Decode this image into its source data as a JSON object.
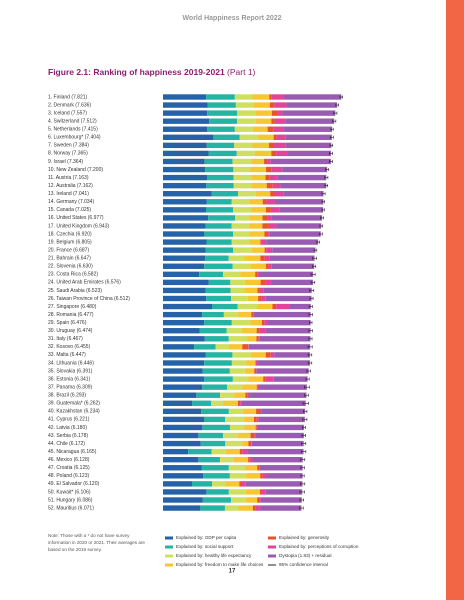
{
  "header": "World Happiness Report 2022",
  "page_number": "17",
  "note": "Note: Those with a * do not have survey information in 2020 or 2021. Their averages are based on the 2019 survey.",
  "chart_data": {
    "type": "stacked-barh",
    "title": "Figure 2.1: Ranking of happiness 2019-2021",
    "title_part": "(Part 1)",
    "xlim": [
      0,
      8
    ],
    "categories": [
      "1. Finland (7.821)",
      "2. Denmark (7.636)",
      "3. Iceland (7.557)",
      "4. Switzerland (7.512)",
      "5. Netherlands (7.415)",
      "6. Luxembourg* (7.404)",
      "7. Sweden (7.384)",
      "8. Norway (7.365)",
      "9. Israel (7.364)",
      "10. New Zealand (7.200)",
      "11. Austria (7.163)",
      "12. Australia (7.162)",
      "13. Ireland (7.041)",
      "14. Germany (7.034)",
      "15. Canada (7.025)",
      "16. United States (6.977)",
      "17. United Kingdom (6.943)",
      "18. Czechia (6.920)",
      "19. Belgium (6.805)",
      "20. France (6.687)",
      "21. Bahrain (6.647)",
      "22. Slovenia (6.630)",
      "23. Costa Rica (6.582)",
      "24. United Arab Emirates (6.576)",
      "25. Saudi Arabia (6.523)",
      "26. Taiwan Province of China (6.512)",
      "27. Singapore (6.480)",
      "28. Romania (6.477)",
      "29. Spain (6.476)",
      "30. Uruguay (6.474)",
      "31. Italy (6.467)",
      "32. Kosovo (6.455)",
      "33. Malta (6.447)",
      "34. Lithuania (6.446)",
      "35. Slovakia (6.391)",
      "36. Estonia (6.341)",
      "37. Panama (6.309)",
      "38. Brazil (6.293)",
      "39. Guatemala* (6.262)",
      "40. Kazakhstan (6.234)",
      "41. Cyprus (6.221)",
      "42. Latvia (6.180)",
      "43. Serbia (6.178)",
      "44. Chile (6.172)",
      "45. Nicaragua (6.165)",
      "46. Mexico (6.128)",
      "47. Croatia (6.125)",
      "48. Poland (6.123)",
      "49. El Salvador (6.120)",
      "50. Kuwait* (6.106)",
      "51. Hungary (6.086)",
      "52. Mauritius (6.071)"
    ],
    "series": [
      {
        "name": "Explained by: GDP per capita",
        "color": "#2662a8",
        "values": [
          1.892,
          1.953,
          1.936,
          2.026,
          1.945,
          2.209,
          1.92,
          1.997,
          1.826,
          1.852,
          1.931,
          1.9,
          2.129,
          1.924,
          1.886,
          1.982,
          1.867,
          1.815,
          1.907,
          1.863,
          1.854,
          1.81,
          1.584,
          2.01,
          1.87,
          1.897,
          2.149,
          1.719,
          1.808,
          1.615,
          1.834,
          1.362,
          1.864,
          1.806,
          1.735,
          1.812,
          1.717,
          1.462,
          1.274,
          1.668,
          1.815,
          1.726,
          1.55,
          1.651,
          1.105,
          1.552,
          1.705,
          1.758,
          1.271,
          1.904,
          1.748,
          1.639
        ]
      },
      {
        "name": "Explained by: social support",
        "color": "#25b3a4",
        "values": [
          1.258,
          1.243,
          1.32,
          1.226,
          1.206,
          1.155,
          1.204,
          1.239,
          1.221,
          1.235,
          1.165,
          1.203,
          1.166,
          1.088,
          1.188,
          1.182,
          1.143,
          1.26,
          1.106,
          1.219,
          1.029,
          1.249,
          1.054,
          0.943,
          1.092,
          1.095,
          1.127,
          0.951,
          1.211,
          1.179,
          1.051,
          0.949,
          1.181,
          1.215,
          1.198,
          1.252,
          1.101,
          1.044,
          0.831,
          1.22,
          0.909,
          1.211,
          1.086,
          1.08,
          1.029,
          0.946,
          1.183,
          1.174,
          0.885,
          0.983,
          1.233,
          1.077
        ]
      },
      {
        "name": "Explained by: healthy life expectancy",
        "color": "#cfe060",
        "values": [
          0.775,
          0.777,
          0.803,
          0.822,
          0.787,
          0.79,
          0.803,
          0.786,
          0.818,
          0.752,
          0.774,
          0.772,
          0.779,
          0.776,
          0.783,
          0.628,
          0.75,
          0.715,
          0.764,
          0.808,
          0.693,
          0.769,
          0.744,
          0.631,
          0.606,
          0.733,
          0.851,
          0.635,
          0.808,
          0.658,
          0.801,
          0.569,
          0.802,
          0.629,
          0.658,
          0.685,
          0.666,
          0.615,
          0.522,
          0.611,
          0.819,
          0.635,
          0.658,
          0.748,
          0.617,
          0.614,
          0.709,
          0.712,
          0.567,
          0.747,
          0.664,
          0.597
        ]
      },
      {
        "name": "Explained by: freedom to make life choices",
        "color": "#f6c633",
        "values": [
          0.736,
          0.719,
          0.718,
          0.677,
          0.651,
          0.7,
          0.724,
          0.728,
          0.568,
          0.68,
          0.623,
          0.676,
          0.627,
          0.585,
          0.659,
          0.574,
          0.597,
          0.66,
          0.492,
          0.567,
          0.693,
          0.685,
          0.661,
          0.697,
          0.577,
          0.447,
          0.672,
          0.567,
          0.508,
          0.657,
          0.412,
          0.598,
          0.659,
          0.4,
          0.41,
          0.646,
          0.628,
          0.494,
          0.662,
          0.584,
          0.448,
          0.493,
          0.546,
          0.269,
          0.617,
          0.621,
          0.533,
          0.62,
          0.628,
          0.617,
          0.484,
          0.629
        ]
      },
      {
        "name": "Explained by: generosity",
        "color": "#e5552b",
        "values": [
          0.109,
          0.188,
          0.27,
          0.147,
          0.271,
          0.12,
          0.218,
          0.217,
          0.155,
          0.245,
          0.193,
          0.258,
          0.19,
          0.163,
          0.217,
          0.22,
          0.289,
          0.158,
          0.049,
          0.07,
          0.199,
          0.118,
          0.089,
          0.196,
          0.104,
          0.152,
          0.163,
          0.078,
          0.101,
          0.116,
          0.085,
          0.262,
          0.218,
          0.025,
          0.091,
          0.11,
          0.051,
          0.103,
          0.102,
          0.127,
          0.123,
          0.043,
          0.181,
          0.126,
          0.113,
          0.068,
          0.112,
          0.104,
          0.07,
          0.087,
          0.106,
          0.128
        ]
      },
      {
        "name": "Explained by: perceptions of corruption",
        "color": "#e0449b",
        "values": [
          0.534,
          0.532,
          0.191,
          0.461,
          0.419,
          0.388,
          0.512,
          0.474,
          0.143,
          0.483,
          0.329,
          0.341,
          0.408,
          0.358,
          0.368,
          0.177,
          0.329,
          0.048,
          0.204,
          0.266,
          0.211,
          0.115,
          0.102,
          0.28,
          0.165,
          0.183,
          0.587,
          0.007,
          0.127,
          0.265,
          0.059,
          0.017,
          0.155,
          0.068,
          0.005,
          0.352,
          0.046,
          0.1,
          0.071,
          0.129,
          0.082,
          0.034,
          0.031,
          0.014,
          0.206,
          0.122,
          0.005,
          0.171,
          0.212,
          0.147,
          0.058,
          0.146
        ]
      },
      {
        "name": "Dystopia (1.83) + residual",
        "color": "#9a5cb2",
        "values": [
          2.518,
          2.226,
          2.32,
          2.153,
          2.137,
          2.042,
          2.003,
          1.925,
          2.634,
          1.953,
          2.148,
          2.012,
          1.741,
          2.14,
          1.924,
          2.214,
          1.967,
          2.265,
          2.283,
          1.894,
          1.969,
          1.884,
          2.349,
          1.819,
          2.109,
          2.006,
          0.931,
          2.52,
          1.913,
          1.984,
          2.226,
          2.698,
          1.567,
          2.303,
          2.294,
          1.484,
          2.1,
          2.475,
          2.8,
          1.895,
          2.025,
          2.038,
          2.126,
          2.284,
          2.478,
          2.205,
          1.878,
          1.584,
          2.487,
          1.621,
          1.793,
          1.855
        ]
      }
    ],
    "errors": {
      "name": "95% confidence interval",
      "color": "#222222",
      "values": [
        0.06,
        0.06,
        0.07,
        0.07,
        0.05,
        0.07,
        0.06,
        0.07,
        0.07,
        0.07,
        0.07,
        0.06,
        0.07,
        0.06,
        0.05,
        0.07,
        0.06,
        0.07,
        0.06,
        0.06,
        0.09,
        0.07,
        0.09,
        0.08,
        0.09,
        0.07,
        0.07,
        0.08,
        0.06,
        0.08,
        0.07,
        0.09,
        0.08,
        0.08,
        0.08,
        0.07,
        0.11,
        0.08,
        0.12,
        0.08,
        0.09,
        0.07,
        0.08,
        0.09,
        0.1,
        0.09,
        0.08,
        0.07,
        0.1,
        0.1,
        0.08,
        0.08
      ]
    }
  }
}
